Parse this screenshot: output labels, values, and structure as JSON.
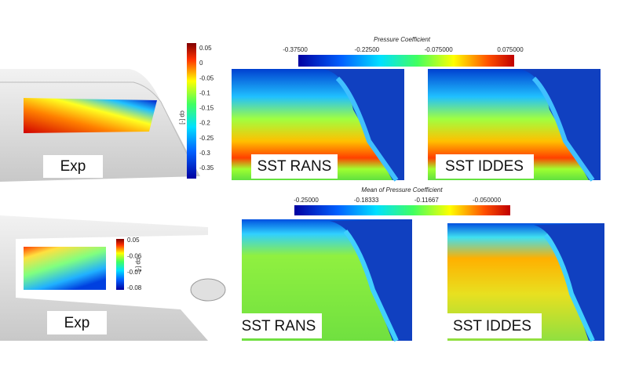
{
  "top_row": {
    "experiment": {
      "label": "Exp",
      "colorbar": {
        "title": "cp [-]",
        "ticks": [
          "0.05",
          "0",
          "-0.05",
          "-0.1",
          "-0.15",
          "-0.2",
          "-0.25",
          "-0.3",
          "-0.35"
        ]
      }
    },
    "colorbar": {
      "title": "Pressure Coefficient",
      "ticks": [
        "-0.37500",
        "-0.22500",
        "-0.075000",
        "0.075000"
      ]
    },
    "panels": [
      {
        "label": "SST RANS"
      },
      {
        "label": "SST IDDES"
      }
    ]
  },
  "bottom_row": {
    "experiment": {
      "label": "Exp",
      "colorbar": {
        "title": "cp [-]",
        "ticks": [
          "0.05",
          "-0.06",
          "-0.07",
          "-0.08"
        ]
      }
    },
    "colorbar": {
      "title": "Mean of Pressure Coefficient",
      "ticks": [
        "-0.25000",
        "-0.18333",
        "-0.11667",
        "-0.050000"
      ]
    },
    "panels": [
      {
        "label": "SST RANS"
      },
      {
        "label": "SST IDDES"
      }
    ]
  }
}
